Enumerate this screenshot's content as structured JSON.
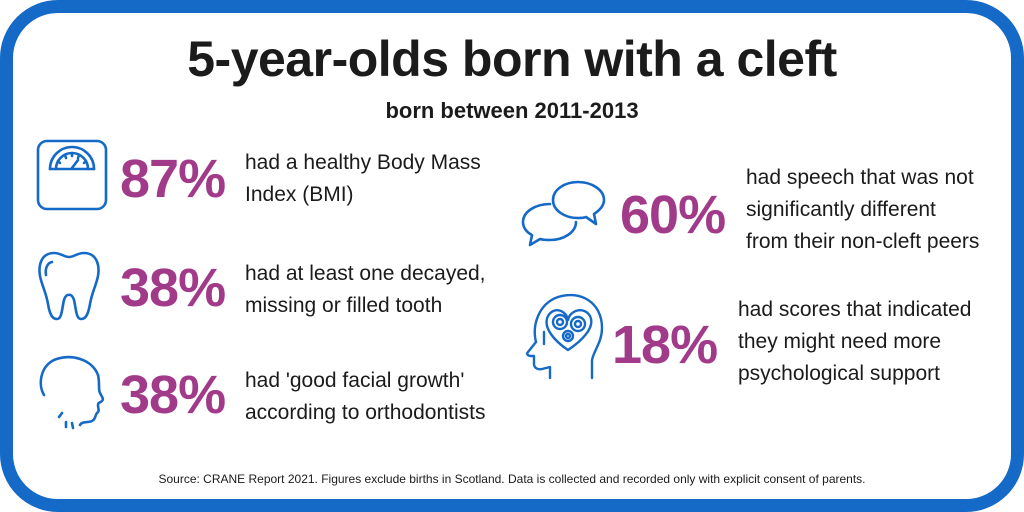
{
  "title": "5-year-olds born with a cleft",
  "subtitle": "born between 2011-2013",
  "accent_color": "#a23a8a",
  "border_color": "#1569c7",
  "icon_color": "#1569c7",
  "stats": [
    {
      "icon": "scale-icon",
      "percent": "87%",
      "lines": [
        "had a healthy Body Mass",
        "Index (BMI)"
      ]
    },
    {
      "icon": "tooth-icon",
      "percent": "38%",
      "lines": [
        "had at least one decayed,",
        "missing or filled tooth"
      ]
    },
    {
      "icon": "face-profile-icon",
      "percent": "38%",
      "lines": [
        "had 'good facial growth'",
        "according to orthodontists"
      ]
    },
    {
      "icon": "speech-bubbles-icon",
      "percent": "60%",
      "lines": [
        "had speech that was not",
        "significantly different",
        "from their non-cleft peers"
      ]
    },
    {
      "icon": "head-gears-icon",
      "percent": "18%",
      "lines": [
        "had scores that indicated",
        "they might need more",
        "psychological support"
      ]
    }
  ],
  "source": "Source: CRANE Report 2021. Figures exclude births in Scotland. Data is collected and recorded only with explicit consent of parents."
}
